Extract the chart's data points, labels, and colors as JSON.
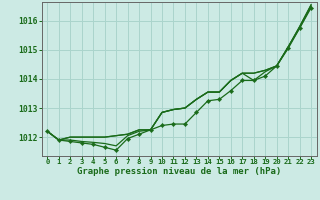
{
  "title": "Graphe pression niveau de la mer (hPa)",
  "background_color": "#cceae4",
  "grid_color": "#aad4cc",
  "line_color": "#1a6b1a",
  "spine_color": "#666666",
  "x_ticks": [
    0,
    1,
    2,
    3,
    4,
    5,
    6,
    7,
    8,
    9,
    10,
    11,
    12,
    13,
    14,
    15,
    16,
    17,
    18,
    19,
    20,
    21,
    22,
    23
  ],
  "y_ticks": [
    1012,
    1013,
    1014,
    1015,
    1016
  ],
  "ylim": [
    1011.35,
    1016.65
  ],
  "xlim": [
    -0.5,
    23.5
  ],
  "series_markers": [
    [
      1012.2,
      1011.9,
      1011.85,
      1011.8,
      1011.75,
      1011.65,
      1011.55,
      1011.95,
      1012.1,
      1012.25,
      1012.4,
      1012.45,
      1012.45,
      1012.85,
      1013.25,
      1013.3,
      1013.6,
      1013.95,
      1013.95,
      1014.1,
      1014.45,
      1015.05,
      1015.75,
      1016.45
    ]
  ],
  "series_lines": [
    [
      1012.2,
      1011.9,
      1012.0,
      1012.0,
      1012.0,
      1012.0,
      1012.05,
      1012.1,
      1012.25,
      1012.25,
      1012.85,
      1012.95,
      1013.0,
      1013.3,
      1013.55,
      1013.55,
      1013.95,
      1014.2,
      1014.2,
      1014.3,
      1014.45,
      1015.1,
      1015.8,
      1016.55
    ],
    [
      1012.2,
      1011.9,
      1012.0,
      1012.0,
      1012.0,
      1012.0,
      1012.05,
      1012.1,
      1012.25,
      1012.25,
      1012.85,
      1012.95,
      1013.0,
      1013.3,
      1013.55,
      1013.55,
      1013.95,
      1014.2,
      1013.95,
      1014.25,
      1014.45,
      1015.1,
      1015.75,
      1016.5
    ],
    [
      1012.2,
      1011.9,
      1011.9,
      1011.85,
      1011.82,
      1011.78,
      1011.7,
      1012.05,
      1012.2,
      1012.25,
      1012.85,
      1012.95,
      1013.0,
      1013.3,
      1013.55,
      1013.55,
      1013.95,
      1014.2,
      1014.2,
      1014.3,
      1014.45,
      1015.1,
      1015.8,
      1016.55
    ]
  ]
}
